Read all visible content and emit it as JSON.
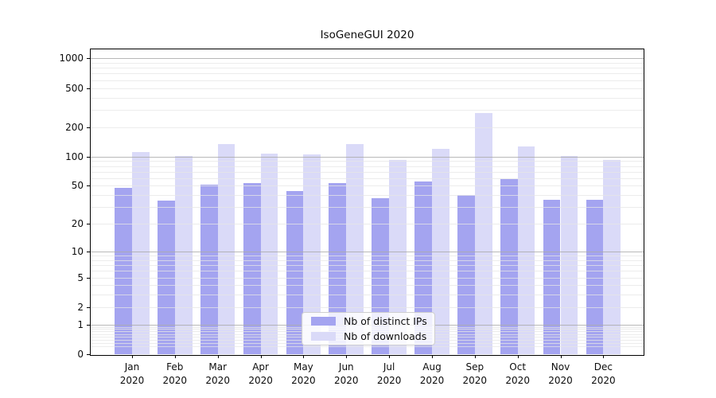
{
  "title": "IsoGeneGUI 2020",
  "colors": {
    "ips_bar": "#a4a4f0",
    "downloads_bar": "#dadaf8",
    "grid_major": "#ababab",
    "grid_minor": "#e5e5e5",
    "axis": "#000000",
    "legend_border": "#cfcfcf"
  },
  "y_axis": {
    "tick_labels": [
      "1000",
      "500",
      "200",
      "100",
      "50",
      "20",
      "10",
      "5",
      "2",
      "1",
      "0"
    ]
  },
  "x_axis": {
    "year_line": "2020",
    "months": [
      "Jan",
      "Feb",
      "Mar",
      "Apr",
      "May",
      "Jun",
      "Jul",
      "Aug",
      "Sep",
      "Oct",
      "Nov",
      "Dec"
    ]
  },
  "chart_data": {
    "type": "bar",
    "title": "IsoGeneGUI 2020",
    "categories": [
      "Jan 2020",
      "Feb 2020",
      "Mar 2020",
      "Apr 2020",
      "May 2020",
      "Jun 2020",
      "Jul 2020",
      "Aug 2020",
      "Sep 2020",
      "Oct 2020",
      "Nov 2020",
      "Dec 2020"
    ],
    "series": [
      {
        "name": "Nb of distinct IPs",
        "values": [
          48,
          35,
          51,
          53,
          44,
          53,
          37,
          55,
          40,
          59,
          36,
          36
        ]
      },
      {
        "name": "Nb of downloads",
        "values": [
          112,
          101,
          135,
          107,
          106,
          135,
          93,
          121,
          278,
          127,
          101,
          92
        ]
      }
    ],
    "yscale": "log10(1+y)",
    "y_ticks": [
      0,
      1,
      2,
      5,
      10,
      20,
      50,
      100,
      200,
      500,
      1000
    ],
    "ylim": [
      0,
      1250
    ],
    "grid": "major-and-minor, drawn above bars",
    "legend_position": "lower center inside plot"
  }
}
